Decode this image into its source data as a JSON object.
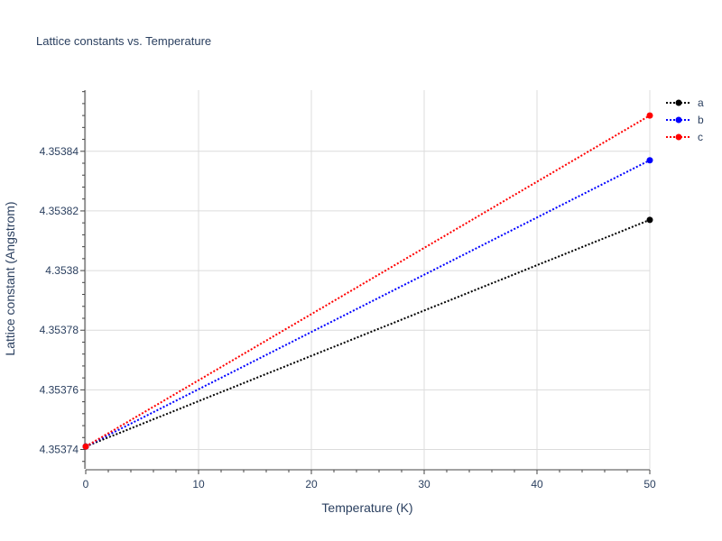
{
  "chart_data": {
    "type": "line",
    "title": "Lattice constants vs. Temperature",
    "xlabel": "Temperature (K)",
    "ylabel": "Lattice constant (Angstrom)",
    "xlim": [
      0,
      50
    ],
    "ylim": [
      4.3537335,
      4.3538605
    ],
    "x_ticks": [
      0,
      10,
      20,
      30,
      40,
      50
    ],
    "x_tick_labels": [
      "0",
      "10",
      "20",
      "30",
      "40",
      "50"
    ],
    "y_ticks": [
      4.35374,
      4.35376,
      4.35378,
      4.3538,
      4.35382,
      4.35384
    ],
    "y_tick_labels": [
      "4.35374",
      "4.35376",
      "4.35378",
      "4.3538",
      "4.35382",
      "4.35384"
    ],
    "x_minor_step": 2,
    "y_minor_step": 4e-06,
    "grid": true,
    "legend_position": "top-right",
    "series": [
      {
        "name": "a",
        "color": "#000000",
        "x": [
          0,
          50
        ],
        "y": [
          4.353741,
          4.353817
        ]
      },
      {
        "name": "b",
        "color": "#0000ff",
        "x": [
          0,
          50
        ],
        "y": [
          4.353741,
          4.353837
        ]
      },
      {
        "name": "c",
        "color": "#ff0000",
        "x": [
          0,
          50
        ],
        "y": [
          4.353741,
          4.353852
        ]
      }
    ]
  }
}
